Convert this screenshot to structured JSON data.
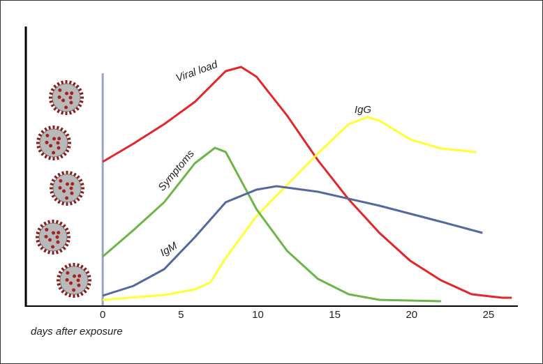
{
  "chart_data": {
    "type": "line",
    "x_label": "days after exposure",
    "xlim": [
      -5,
      27
    ],
    "ylim": [
      0,
      100
    ],
    "xticks": [
      0,
      5,
      10,
      15,
      20,
      25
    ],
    "series": [
      {
        "name": "Viral load",
        "color": "#e3262b",
        "x": [
          0,
          2,
          4,
          6,
          8,
          9,
          10,
          12,
          14,
          16,
          18,
          20,
          22,
          24,
          26,
          26.6
        ],
        "values": [
          51.5,
          58,
          65,
          73,
          84,
          85.5,
          82,
          68,
          52,
          38,
          26,
          16,
          9,
          4,
          2.75,
          2.75
        ]
      },
      {
        "name": "IgG",
        "color": "#ffff33",
        "x": [
          0,
          4,
          6,
          7,
          8,
          10,
          12,
          14,
          16,
          17.2,
          18,
          20,
          22,
          24.3
        ],
        "values": [
          2,
          3.75,
          5.75,
          8.25,
          17,
          32,
          43.25,
          54.5,
          65,
          67.5,
          66.25,
          59.5,
          56.25,
          55
        ]
      },
      {
        "name": "Symptoms",
        "color": "#6cb548",
        "x": [
          0,
          2,
          4,
          6,
          7.3,
          8,
          10,
          12,
          14,
          16,
          18,
          22
        ],
        "values": [
          17.5,
          27,
          37,
          51,
          56.5,
          55,
          34.5,
          19.5,
          9.5,
          4,
          2,
          1.5
        ]
      },
      {
        "name": "IgM",
        "color": "#5468a0",
        "x": [
          0,
          2,
          4,
          6,
          8,
          10,
          11.3,
          14,
          18,
          22,
          24.7
        ],
        "values": [
          3.5,
          7,
          13,
          24.5,
          37,
          41.5,
          42.75,
          40.75,
          35.75,
          30,
          26
        ]
      }
    ]
  }
}
